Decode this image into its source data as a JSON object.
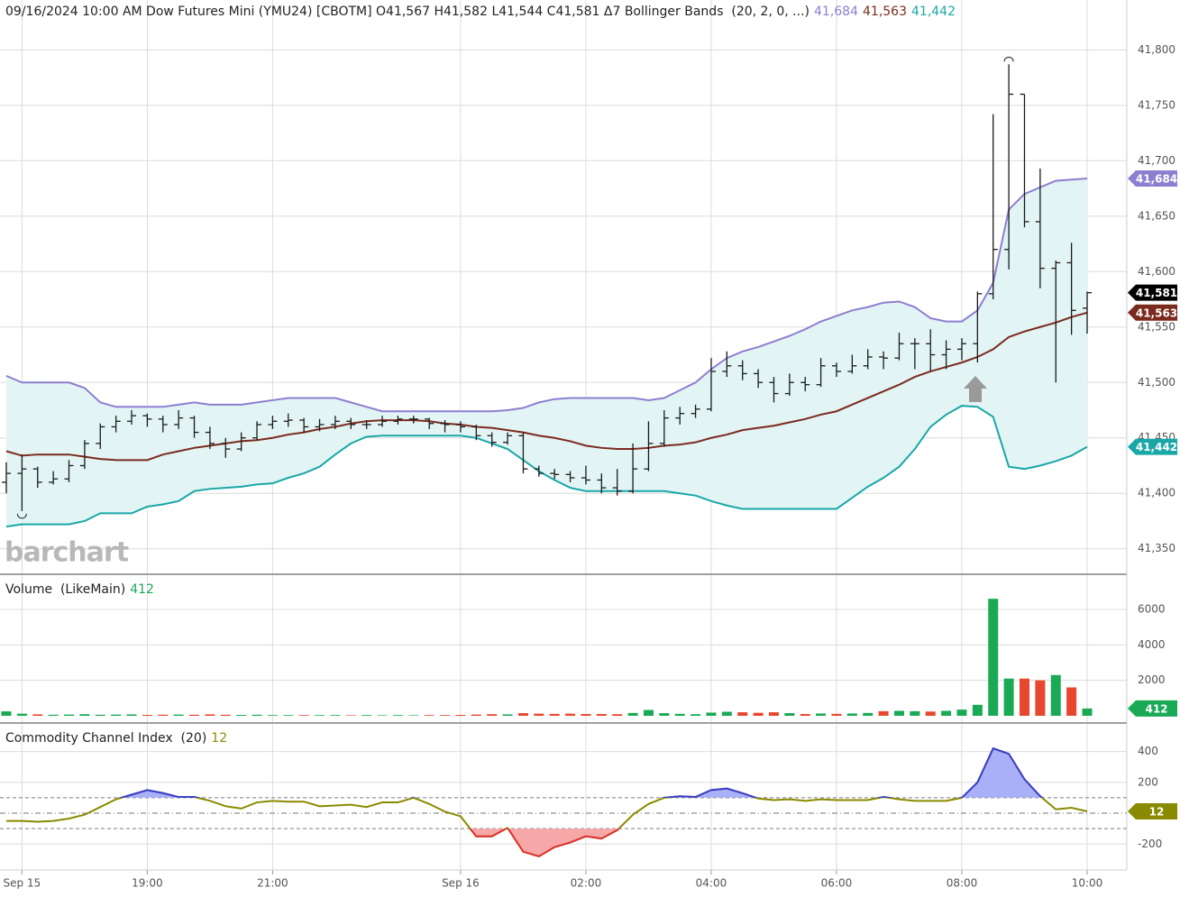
{
  "chart_data": [
    {
      "type": "ohlc",
      "title": "09/16/2024 10:00 AM Dow Futures Mini (YMU24) [CBOTM] O41,567 H41,582 L41,544 C41,581 Δ7 Bollinger Bands  (20, 2, 0, ...)",
      "watermark": "barchart",
      "x": [
        "Sep 15 16:45",
        "Sep 15 17:00",
        "Sep 15 17:15",
        "Sep 15 17:30",
        "Sep 15 17:45",
        "Sep 15 18:00",
        "Sep 15 18:15",
        "Sep 15 18:30",
        "Sep 15 18:45",
        "Sep 15 19:00",
        "Sep 15 19:15",
        "Sep 15 19:30",
        "Sep 15 19:45",
        "Sep 15 20:00",
        "Sep 15 20:15",
        "Sep 15 20:30",
        "Sep 15 20:45",
        "Sep 15 21:00",
        "Sep 15 21:15",
        "Sep 15 21:30",
        "Sep 15 21:45",
        "Sep 15 22:00",
        "Sep 15 22:15",
        "Sep 15 22:30",
        "Sep 15 22:45",
        "Sep 15 23:00",
        "Sep 15 23:15",
        "Sep 15 23:30",
        "Sep 15 23:45",
        "Sep 16 00:00",
        "Sep 16 00:15",
        "Sep 16 00:30",
        "Sep 16 00:45",
        "Sep 16 01:00",
        "Sep 16 01:15",
        "Sep 16 01:30",
        "Sep 16 01:45",
        "Sep 16 02:00",
        "Sep 16 02:15",
        "Sep 16 02:30",
        "Sep 16 02:45",
        "Sep 16 03:00",
        "Sep 16 03:15",
        "Sep 16 03:30",
        "Sep 16 03:45",
        "Sep 16 04:00",
        "Sep 16 04:15",
        "Sep 16 04:30",
        "Sep 16 04:45",
        "Sep 16 05:00",
        "Sep 16 05:15",
        "Sep 16 05:30",
        "Sep 16 05:45",
        "Sep 16 06:00",
        "Sep 16 06:15",
        "Sep 16 06:30",
        "Sep 16 06:45",
        "Sep 16 07:00",
        "Sep 16 07:15",
        "Sep 16 07:30",
        "Sep 16 07:45",
        "Sep 16 08:00",
        "Sep 16 08:15",
        "Sep 16 08:30",
        "Sep 16 08:45",
        "Sep 16 09:00",
        "Sep 16 09:15",
        "Sep 16 09:30",
        "Sep 16 09:45",
        "Sep 16 10:00"
      ],
      "xticks": [
        {
          "value": "Sep 15 17:00",
          "label": "Sep 15"
        },
        {
          "value": "Sep 15 19:00",
          "label": "19:00"
        },
        {
          "value": "Sep 15 21:00",
          "label": "21:00"
        },
        {
          "value": "Sep 16 00:00",
          "label": "Sep 16"
        },
        {
          "value": "Sep 16 02:00",
          "label": "02:00"
        },
        {
          "value": "Sep 16 04:00",
          "label": "04:00"
        },
        {
          "value": "Sep 16 06:00",
          "label": "06:00"
        },
        {
          "value": "Sep 16 08:00",
          "label": "08:00"
        },
        {
          "value": "Sep 16 10:00",
          "label": "10:00"
        }
      ],
      "open": [
        41410,
        41418,
        41422,
        41410,
        41413,
        41425,
        41445,
        41460,
        41465,
        41470,
        41467,
        41462,
        41468,
        41455,
        41445,
        41440,
        41450,
        41462,
        41465,
        41466,
        41460,
        41462,
        41465,
        41462,
        41462,
        41465,
        41467,
        41467,
        41463,
        41462,
        41460,
        41452,
        41446,
        41452,
        41422,
        41418,
        41417,
        41414,
        41412,
        41405,
        41402,
        41422,
        41445,
        41468,
        41472,
        41476,
        41510,
        41515,
        41508,
        41500,
        41490,
        41500,
        41498,
        41515,
        41510,
        41515,
        41523,
        41522,
        41535,
        41535,
        41525,
        41530,
        41535,
        41580,
        41620,
        41760,
        41645,
        41603,
        41608,
        41567
      ],
      "high": [
        41428,
        41435,
        41424,
        41420,
        41430,
        41448,
        41463,
        41470,
        41475,
        41472,
        41470,
        41475,
        41470,
        41460,
        41450,
        41455,
        41465,
        41470,
        41472,
        41468,
        41467,
        41470,
        41468,
        41466,
        41470,
        41470,
        41470,
        41468,
        41466,
        41465,
        41462,
        41455,
        41455,
        41455,
        41425,
        41422,
        41420,
        41425,
        41418,
        41422,
        41445,
        41465,
        41475,
        41478,
        41480,
        41522,
        41528,
        41520,
        41512,
        41505,
        41508,
        41505,
        41522,
        41518,
        41525,
        41530,
        41528,
        41545,
        41540,
        41548,
        41538,
        41540,
        41582,
        41742,
        41787,
        41760,
        41693,
        41610,
        41626,
        41582
      ],
      "low": [
        41400,
        41384,
        41405,
        41408,
        41410,
        41422,
        41440,
        41455,
        41462,
        41460,
        41455,
        41458,
        41450,
        41440,
        41432,
        41438,
        41448,
        41458,
        41460,
        41455,
        41456,
        41458,
        41458,
        41458,
        41460,
        41462,
        41463,
        41458,
        41455,
        41455,
        41448,
        41442,
        41444,
        41418,
        41415,
        41413,
        41410,
        41408,
        41400,
        41398,
        41400,
        41420,
        41442,
        41462,
        41468,
        41474,
        41505,
        41502,
        41495,
        41482,
        41488,
        41492,
        41496,
        41505,
        41508,
        41512,
        41512,
        41520,
        41512,
        41510,
        41512,
        41520,
        41518,
        41575,
        41602,
        41640,
        41585,
        41500,
        41543,
        41544
      ],
      "close": [
        41418,
        41422,
        41410,
        41413,
        41425,
        41445,
        41460,
        41465,
        41470,
        41467,
        41462,
        41468,
        41455,
        41445,
        41440,
        41450,
        41462,
        41465,
        41466,
        41460,
        41462,
        41465,
        41462,
        41462,
        41465,
        41467,
        41467,
        41463,
        41462,
        41460,
        41452,
        41446,
        41452,
        41422,
        41418,
        41417,
        41414,
        41412,
        41405,
        41402,
        41422,
        41445,
        41468,
        41472,
        41476,
        41510,
        41515,
        41508,
        41500,
        41490,
        41500,
        41498,
        41515,
        41510,
        41515,
        41523,
        41522,
        41535,
        41535,
        41525,
        41530,
        41535,
        41580,
        41620,
        41760,
        41645,
        41603,
        41608,
        41565,
        41581
      ],
      "close_label": "41,581",
      "bar_color": "#1a1a1a",
      "close_color": "#000000",
      "band_fill": "#e3f4f4",
      "series": [
        {
          "name": "Upper",
          "color": "#8c7fd0",
          "last_label": "41,684",
          "values": [
            41506,
            41500,
            41500,
            41500,
            41500,
            41495,
            41482,
            41478,
            41478,
            41478,
            41478,
            41480,
            41482,
            41480,
            41480,
            41480,
            41482,
            41484,
            41486,
            41486,
            41486,
            41486,
            41482,
            41478,
            41474,
            41474,
            41474,
            41474,
            41474,
            41474,
            41474,
            41474,
            41475,
            41477,
            41482,
            41485,
            41486,
            41486,
            41486,
            41486,
            41486,
            41484,
            41486,
            41493,
            41500,
            41512,
            41522,
            41528,
            41532,
            41537,
            41542,
            41548,
            41555,
            41560,
            41565,
            41568,
            41572,
            41573,
            41568,
            41558,
            41555,
            41555,
            41565,
            41590,
            41656,
            41670,
            41676,
            41682,
            41683,
            41684
          ]
        },
        {
          "name": "Middle",
          "color": "#7b2a1e",
          "last_label": "41,563",
          "values": [
            41438,
            41434,
            41435,
            41435,
            41435,
            41433,
            41431,
            41430,
            41430,
            41430,
            41435,
            41438,
            41441,
            41443,
            41445,
            41447,
            41448,
            41450,
            41453,
            41455,
            41458,
            41460,
            41463,
            41465,
            41466,
            41466,
            41466,
            41465,
            41463,
            41462,
            41460,
            41459,
            41457,
            41455,
            41452,
            41450,
            41447,
            41443,
            41441,
            41440,
            41440,
            41441,
            41443,
            41444,
            41446,
            41450,
            41453,
            41457,
            41459,
            41461,
            41464,
            41467,
            41471,
            41474,
            41480,
            41486,
            41492,
            41498,
            41505,
            41510,
            41514,
            41518,
            41523,
            41530,
            41541,
            41546,
            41550,
            41554,
            41559,
            41563
          ]
        },
        {
          "name": "Lower",
          "color": "#1aa7a7",
          "last_label": "41,442",
          "values": [
            41370,
            41372,
            41372,
            41372,
            41372,
            41375,
            41382,
            41382,
            41382,
            41388,
            41390,
            41393,
            41402,
            41404,
            41405,
            41406,
            41408,
            41409,
            41414,
            41418,
            41424,
            41435,
            41445,
            41451,
            41452,
            41452,
            41452,
            41452,
            41452,
            41452,
            41450,
            41445,
            41440,
            41430,
            41420,
            41412,
            41405,
            41402,
            41402,
            41402,
            41402,
            41402,
            41402,
            41400,
            41398,
            41393,
            41389,
            41386,
            41386,
            41386,
            41386,
            41386,
            41386,
            41386,
            41396,
            41406,
            41414,
            41424,
            41440,
            41460,
            41471,
            41479,
            41478,
            41469,
            41424,
            41422,
            41425,
            41429,
            41434,
            41442
          ]
        }
      ],
      "ylim": [
        41327,
        41845
      ],
      "yticks": [
        {
          "value": 41350,
          "label": "41,350"
        },
        {
          "value": 41400,
          "label": "41,400"
        },
        {
          "value": 41450,
          "label": "41,450"
        },
        {
          "value": 41500,
          "label": "41,500"
        },
        {
          "value": 41550,
          "label": "41,550"
        },
        {
          "value": 41600,
          "label": "41,600"
        },
        {
          "value": 41650,
          "label": "41,650"
        },
        {
          "value": 41700,
          "label": "41,700"
        },
        {
          "value": 41750,
          "label": "41,750"
        },
        {
          "value": 41800,
          "label": "41,800"
        }
      ],
      "grid": true
    },
    {
      "type": "volume",
      "title": "Volume  (LikeMain)",
      "last_label": "412",
      "up_color": "#1aaa55",
      "down_color": "#e8472f",
      "values": [
        250,
        120,
        80,
        60,
        70,
        90,
        60,
        70,
        80,
        50,
        60,
        70,
        60,
        80,
        60,
        50,
        60,
        40,
        40,
        40,
        40,
        40,
        30,
        40,
        30,
        40,
        30,
        40,
        40,
        50,
        70,
        90,
        80,
        150,
        120,
        110,
        120,
        100,
        100,
        90,
        160,
        330,
        150,
        110,
        90,
        180,
        230,
        200,
        170,
        200,
        150,
        100,
        130,
        110,
        130,
        160,
        260,
        280,
        260,
        240,
        280,
        350,
        620,
        6600,
        2100,
        2100,
        2000,
        2300,
        1600,
        412
      ],
      "ylim": [
        -305,
        7830
      ],
      "yticks": [
        2000,
        4000,
        6000
      ],
      "grid": true
    },
    {
      "type": "cci",
      "title": "Commodity Channel Index  (20)",
      "last_label": "12",
      "color": "#8a8a00",
      "above_color": "#3a3fd0",
      "above_fill": "#aab0f8",
      "below_color": "#e03030",
      "below_fill": "#f6a8a8",
      "values": [
        -50,
        -50,
        -55,
        -50,
        -35,
        -10,
        40,
        90,
        120,
        150,
        130,
        105,
        105,
        80,
        45,
        30,
        70,
        80,
        75,
        75,
        45,
        50,
        55,
        40,
        70,
        70,
        100,
        60,
        10,
        -20,
        -150,
        -150,
        -95,
        -250,
        -280,
        -220,
        -190,
        -150,
        -165,
        -110,
        -10,
        60,
        100,
        110,
        105,
        150,
        160,
        130,
        95,
        85,
        90,
        80,
        90,
        85,
        85,
        85,
        105,
        90,
        80,
        80,
        80,
        100,
        200,
        420,
        385,
        220,
        110,
        25,
        35,
        12
      ],
      "levels": [
        100,
        0,
        -100
      ],
      "ylim": [
        -368,
        567
      ],
      "yticks": [
        -200,
        200,
        400
      ],
      "grid": true
    }
  ]
}
